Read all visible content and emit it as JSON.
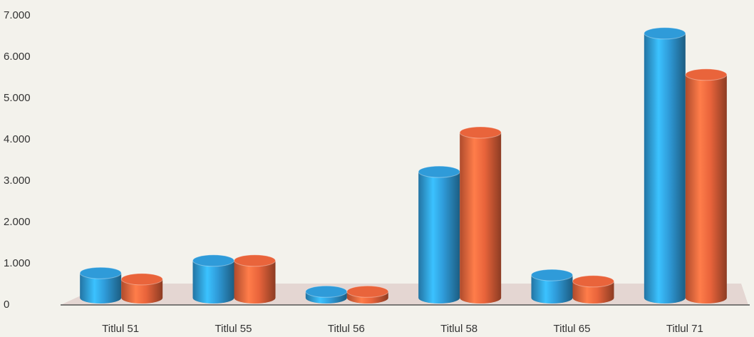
{
  "chart_data": {
    "type": "bar3d",
    "categories": [
      "Titlul 51",
      "Titlul 55",
      "Titlul 56",
      "Titlul 58",
      "Titlul 65",
      "Titlul 71"
    ],
    "series": [
      {
        "color": "#2f9bd9",
        "values": [
          600,
          900,
          150,
          3050,
          550,
          6400
        ]
      },
      {
        "color": "#e9643b",
        "values": [
          450,
          900,
          150,
          4000,
          400,
          5400
        ]
      }
    ],
    "ylim": [
      0,
      7000
    ],
    "yticks": [
      0,
      {
        "value": 1000,
        "label": "1.000"
      },
      {
        "value": 2000,
        "label": "2.000"
      },
      {
        "value": 3000,
        "label": "3.000"
      },
      {
        "value": 4000,
        "label": "4.000"
      },
      {
        "value": 5000,
        "label": "5.000"
      },
      {
        "value": 6000,
        "label": "6.000"
      },
      {
        "value": 7000,
        "label": "7.000"
      }
    ]
  }
}
